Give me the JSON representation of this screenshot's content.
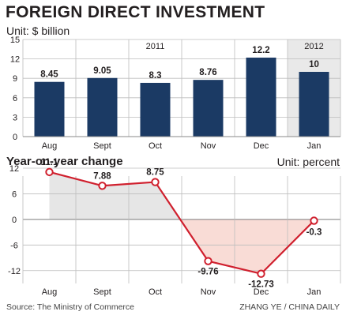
{
  "title": "FOREIGN DIRECT INVESTMENT",
  "source": "Source: The Ministry of Commerce",
  "credit": "ZHANG YE / CHINA DAILY",
  "colors": {
    "bar": "#1b3a64",
    "line": "#d0202e",
    "positive_fill": "#e6e6e6",
    "negative_fill": "#f9dcd6",
    "year2012_bg": "#e9e9e9",
    "grid": "#bdbdbd"
  },
  "chart_data": [
    {
      "type": "bar",
      "unit_label": "Unit: $ billion",
      "categories": [
        "Aug",
        "Sept",
        "Oct",
        "Nov",
        "Dec",
        "Jan"
      ],
      "values": [
        8.45,
        9.05,
        8.3,
        8.76,
        12.2,
        10
      ],
      "value_labels": [
        "8.45",
        "9.05",
        "8.3",
        "8.76",
        "12.2",
        "10"
      ],
      "year_labels": [
        "2011",
        "2012"
      ],
      "ylim": [
        0,
        15
      ],
      "yticks": [
        0,
        3,
        6,
        9,
        12,
        15
      ],
      "grid": true
    },
    {
      "type": "line",
      "title": "Year-on-year change",
      "unit_label": "Unit: percent",
      "categories": [
        "Aug",
        "Sept",
        "Oct",
        "Nov",
        "Dec",
        "Jan"
      ],
      "values": [
        11.1,
        7.88,
        8.75,
        -9.76,
        -12.73,
        -0.3
      ],
      "value_labels": [
        "11.1",
        "7.88",
        "8.75",
        "-9.76",
        "-12.73",
        "-0.3"
      ],
      "ylim": [
        -15,
        12
      ],
      "yticks": [
        12,
        6,
        0,
        -6,
        -12
      ],
      "grid": true
    }
  ]
}
